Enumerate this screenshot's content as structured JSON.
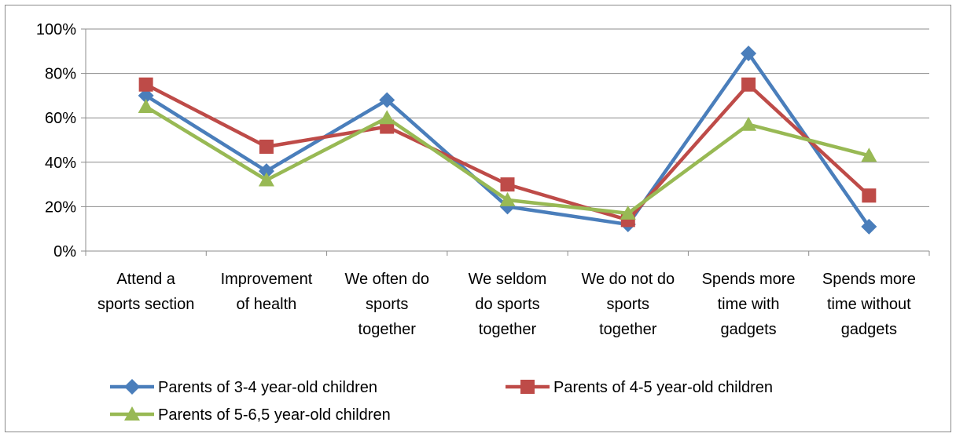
{
  "chart_data": {
    "type": "line",
    "categories": [
      [
        "Attend a",
        "sports section"
      ],
      [
        "Improvement",
        "of health"
      ],
      [
        "We often do",
        "sports",
        "together"
      ],
      [
        "We seldom",
        "do sports",
        "together"
      ],
      [
        "We do not do",
        "sports",
        "together"
      ],
      [
        "Spends more",
        "time with",
        "gadgets"
      ],
      [
        "Spends more",
        "time without",
        "gadgets"
      ]
    ],
    "series": [
      {
        "name": "Parents of 3-4 year-old children",
        "values": [
          70,
          36,
          68,
          20,
          12,
          89,
          11
        ],
        "color": "#4a7ebb",
        "marker": "diamond"
      },
      {
        "name": "Parents of 4-5 year-old children",
        "values": [
          75,
          47,
          56,
          30,
          14,
          75,
          25
        ],
        "color": "#be4b48",
        "marker": "square"
      },
      {
        "name": "Parents of 5-6,5 year-old children",
        "values": [
          65,
          32,
          60,
          23,
          17,
          57,
          43
        ],
        "color": "#98b954",
        "marker": "triangle"
      }
    ],
    "y_ticks": [
      "0%",
      "20%",
      "40%",
      "60%",
      "80%",
      "100%"
    ],
    "ylim": [
      0,
      100
    ],
    "grid": true,
    "legend_position": "bottom"
  }
}
